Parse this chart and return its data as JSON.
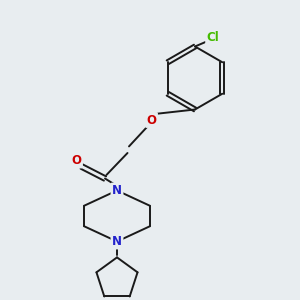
{
  "background_color": "#e8edf0",
  "bond_color": "#1a1a1a",
  "atom_colors": {
    "O_carbonyl": "#cc0000",
    "O_ether": "#cc0000",
    "N": "#2222cc",
    "Cl": "#44bb00",
    "C": "#1a1a1a"
  },
  "font_size_atoms": 8.5,
  "figsize": [
    3.0,
    3.0
  ],
  "dpi": 100
}
